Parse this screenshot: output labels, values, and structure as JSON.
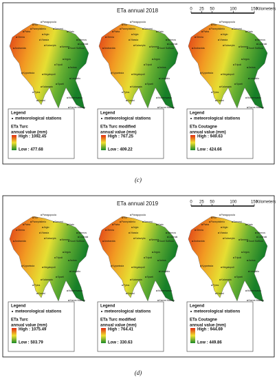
{
  "panels": [
    {
      "title": "ETa annual 2018",
      "caption": "(c)",
      "scale": {
        "ticks": [
          0,
          25,
          50,
          100,
          150
        ],
        "unit": "Kilometers"
      },
      "maps": [
        {
          "legend_title": "Legend",
          "stations_label": "meteorological stations",
          "method": "ETa Turc",
          "unit_label": "annual value (mm)",
          "high": "High : 1092.45",
          "low": "Low : 477.68"
        },
        {
          "legend_title": "Legend",
          "stations_label": "meteorological stations",
          "method": "ETa Turc modified",
          "unit_label": "annual value (mm)",
          "high": "High : 767.25",
          "low": "Low : 409.22"
        },
        {
          "legend_title": "Legend",
          "stations_label": "meteorological stations",
          "method": "ETa Coutagne",
          "unit_label": "annual value (mm)",
          "high": "High : 949.63",
          "low": "Low : 424.66"
        }
      ]
    },
    {
      "title": "ETa annual 2019",
      "caption": "(d)",
      "scale": {
        "ticks": [
          0,
          25,
          50,
          100,
          150
        ],
        "unit": "Kilometers"
      },
      "maps": [
        {
          "legend_title": "Legend",
          "stations_label": "meteorological stations",
          "method": "ETa Turc",
          "unit_label": "annual value (mm)",
          "high": "High : 1075.49",
          "low": "Low : 503.79"
        },
        {
          "legend_title": "Legend",
          "stations_label": "meteorological stations",
          "method": "ETa Turc modified",
          "unit_label": "annual value (mm)",
          "high": "High : 764.41",
          "low": "Low : 330.63"
        },
        {
          "legend_title": "Legend",
          "stations_label": "meteorological stations",
          "method": "ETa Coutagne",
          "unit_label": "annual value (mm)",
          "high": "High : 944.69",
          "low": "Low : 449.86"
        }
      ]
    }
  ],
  "stations": [
    "Rio",
    "Paragopoula",
    "Patra",
    "Derveni",
    "Kiato",
    "Panepistimio",
    "Aigio",
    "Olenia",
    "Vlassia",
    "Isthmos",
    "Loutraki",
    "Andravida",
    "Souri Sofikou",
    "Kalavryta",
    "Nemea",
    "Argos",
    "Tripoli",
    "Kyparissia",
    "Astros",
    "Megalopoli",
    "Kalamata",
    "Sparti",
    "Pylos",
    "Leonidio",
    "Koroni",
    "Monemvasia",
    "Kavos Maleas"
  ]
}
